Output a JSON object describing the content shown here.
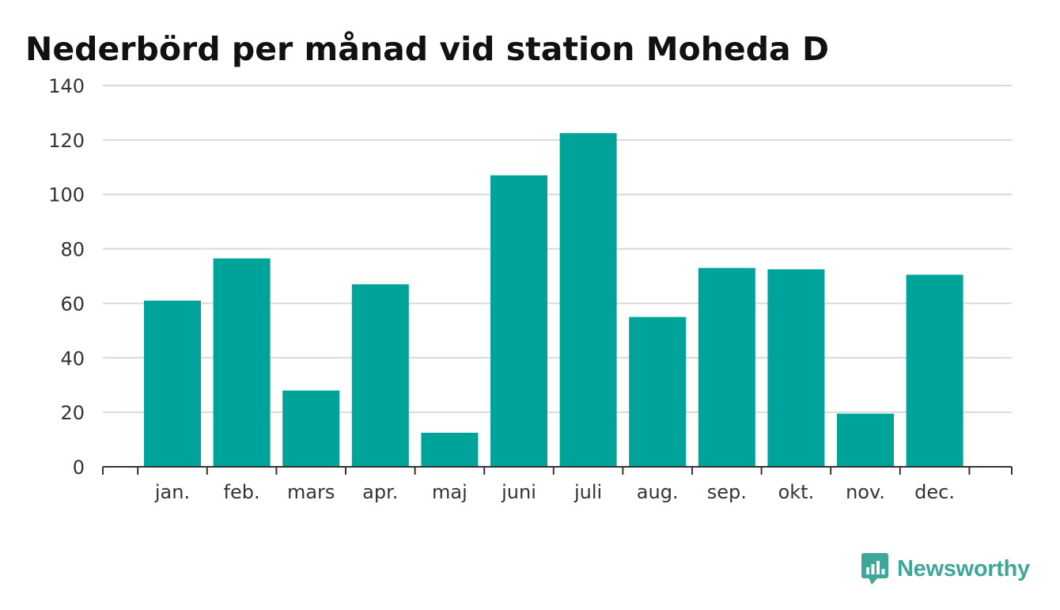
{
  "chart_data": {
    "type": "bar",
    "title": "Nederbörd per månad vid station Moheda D",
    "categories": [
      "jan.",
      "feb.",
      "mars",
      "apr.",
      "maj",
      "juni",
      "juli",
      "aug.",
      "sep.",
      "okt.",
      "nov.",
      "dec."
    ],
    "values": [
      61,
      76.5,
      28,
      67,
      12.5,
      107,
      122.5,
      55,
      73,
      72.5,
      19.5,
      70.5
    ],
    "ylim": [
      0,
      140
    ],
    "yticks": [
      0,
      20,
      40,
      60,
      80,
      100,
      120,
      140
    ],
    "xlabel": "",
    "ylabel": "",
    "grid": true,
    "legend": "none",
    "bar_color": "#00a39a",
    "grid_color": "#d9d9d9",
    "axis_color": "#333333"
  },
  "brand": {
    "name": "Newsworthy",
    "color": "#3fa69a",
    "icon": "newsworthy-logo-icon"
  }
}
